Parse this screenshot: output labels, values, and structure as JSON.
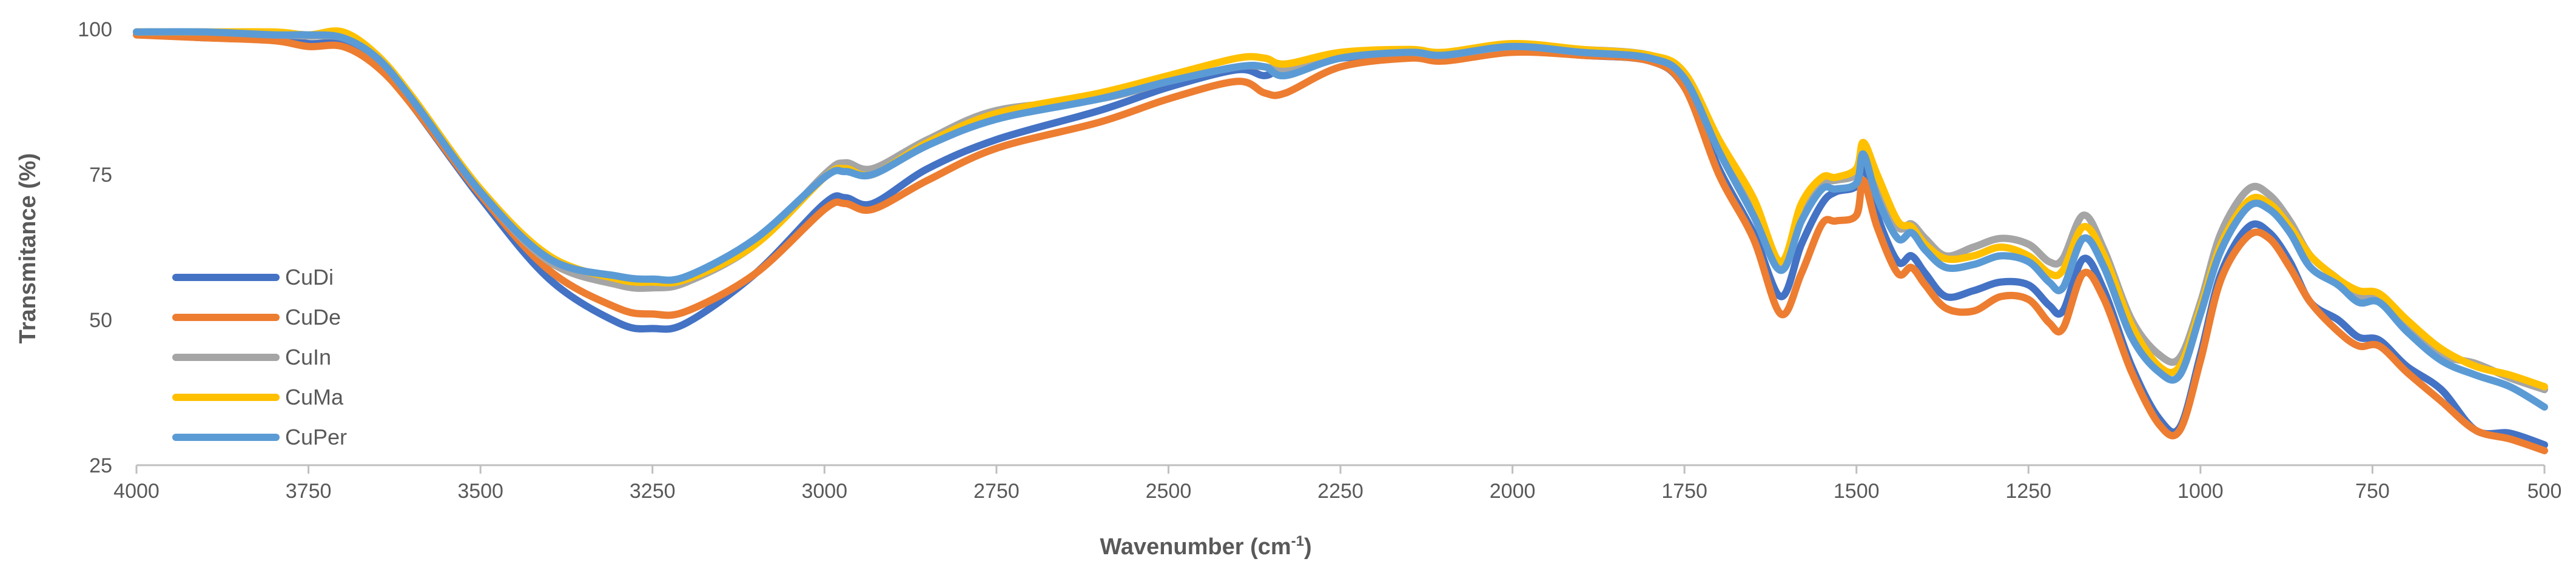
{
  "chart_data": {
    "type": "line",
    "title": "",
    "xlabel": "Wavenumber (cm",
    "xlabel_sup": "-1",
    "xlabel_close": ")",
    "ylabel": "Transmitance (%)",
    "xlim": [
      4000,
      500
    ],
    "ylim": [
      25,
      100
    ],
    "x_reversed": true,
    "grid": false,
    "legend_position": "left",
    "x_ticks": [
      4000,
      3750,
      3500,
      3250,
      3000,
      2750,
      2500,
      2250,
      2000,
      1750,
      1500,
      1250,
      1000,
      750,
      500
    ],
    "y_ticks": [
      25,
      50,
      75,
      100
    ],
    "x_tick_labels": [
      "4000",
      "3750",
      "3500",
      "3250",
      "3000",
      "2750",
      "2500",
      "2250",
      "2000",
      "1750",
      "1500",
      "1250",
      "1000",
      "750",
      "500"
    ],
    "y_tick_labels": [
      "25",
      "50",
      "75",
      "100"
    ],
    "x": [
      4000,
      3900,
      3800,
      3750,
      3700,
      3650,
      3600,
      3500,
      3400,
      3300,
      3250,
      3200,
      3100,
      3000,
      2970,
      2930,
      2850,
      2750,
      2600,
      2500,
      2400,
      2360,
      2330,
      2250,
      2150,
      2100,
      2000,
      1900,
      1800,
      1750,
      1700,
      1650,
      1610,
      1580,
      1550,
      1530,
      1500,
      1490,
      1470,
      1440,
      1420,
      1400,
      1370,
      1330,
      1290,
      1250,
      1220,
      1200,
      1170,
      1140,
      1100,
      1060,
      1030,
      1000,
      970,
      930,
      900,
      870,
      840,
      800,
      770,
      740,
      700,
      650,
      600,
      550,
      500
    ],
    "series": [
      {
        "name": "CuDi",
        "color": "#4472C4",
        "values": [
          99.5,
          98.5,
          98.8,
          97.5,
          97.5,
          94,
          87,
          71,
          57,
          49.5,
          48.5,
          49.5,
          58,
          70,
          71,
          70,
          76,
          81,
          86,
          90,
          93,
          92,
          93.5,
          95,
          95.5,
          95,
          96.5,
          95.5,
          94.5,
          90,
          76,
          65,
          54,
          63,
          70,
          72,
          73,
          77,
          68,
          60,
          61,
          58,
          54,
          55,
          56.5,
          56,
          52.5,
          51.5,
          60.5,
          55,
          42,
          33,
          31.5,
          44,
          58,
          66,
          65,
          60,
          53,
          50,
          47,
          46.5,
          42,
          38,
          31,
          30.5,
          28.5
        ]
      },
      {
        "name": "CuDe",
        "color": "#ED7D31",
        "values": [
          99,
          98.5,
          98,
          97,
          97,
          93.5,
          87,
          71.5,
          58.5,
          52,
          51,
          51.5,
          58,
          69,
          70,
          69,
          74,
          79.5,
          84,
          88,
          91,
          89,
          89,
          93.5,
          95,
          94.5,
          96,
          95.5,
          94.5,
          90,
          75,
          64,
          51,
          58,
          66.5,
          67,
          68,
          74,
          66,
          58,
          59,
          56,
          52,
          51.5,
          54,
          53.5,
          49.5,
          48.5,
          58,
          53.5,
          41,
          32,
          31,
          43,
          57,
          64.5,
          64,
          59,
          53,
          48,
          45.5,
          45.5,
          41,
          36,
          31,
          29.5,
          27.5
        ]
      },
      {
        "name": "CuIn",
        "color": "#A5A5A5",
        "values": [
          99.5,
          99.5,
          99,
          98.8,
          98.5,
          95,
          88,
          72,
          60,
          56,
          55.5,
          56.5,
          63,
          75,
          77,
          76,
          81,
          86,
          88,
          91,
          93.5,
          93.5,
          93,
          95.5,
          96,
          95.5,
          97,
          96.5,
          95.5,
          92,
          80,
          70,
          59,
          68,
          73.5,
          74,
          75,
          79,
          74,
          66,
          66.5,
          64,
          61,
          62.5,
          64,
          63,
          60,
          60.5,
          68,
          62,
          50,
          44,
          43.5,
          53,
          65,
          72.5,
          71.5,
          67,
          61,
          57,
          54,
          53.5,
          49,
          44,
          42.5,
          40,
          38
        ]
      },
      {
        "name": "CuMa",
        "color": "#FFC000",
        "values": [
          99.5,
          99.5,
          99.5,
          99,
          99.5,
          95.5,
          88.5,
          72.5,
          61,
          57,
          56.5,
          57,
          63,
          74.5,
          76,
          75,
          80.5,
          85.5,
          89,
          92,
          95,
          95,
          94,
          96,
          96.5,
          96,
          97.5,
          96.5,
          95.5,
          92.5,
          81,
          71,
          60,
          70,
          74.5,
          74.5,
          76,
          80.5,
          75,
          67,
          66,
          63,
          60.5,
          61,
          62.5,
          61,
          58,
          58.5,
          66,
          61,
          49,
          42,
          42,
          52,
          63,
          70.5,
          70,
          66,
          61,
          57,
          55,
          54.5,
          50,
          45,
          42,
          40.5,
          38.5
        ]
      },
      {
        "name": "CuPer",
        "color": "#5B9BD5",
        "values": [
          99.5,
          99.5,
          99,
          99,
          98.5,
          95,
          88,
          72,
          60.5,
          57.5,
          57,
          57.5,
          64,
          74.5,
          75.5,
          75,
          80,
          84.5,
          88,
          91,
          93.5,
          93.5,
          92,
          95,
          96,
          95.5,
          97,
          96,
          95,
          91.5,
          79,
          68,
          58.5,
          67,
          72.5,
          72.5,
          73.5,
          78.5,
          71,
          64,
          65,
          62,
          59,
          59.5,
          61,
          60,
          56.5,
          55.5,
          64,
          59,
          47,
          41,
          40.5,
          51,
          62,
          69.5,
          69,
          65,
          59,
          56,
          53,
          53,
          48,
          43,
          40.5,
          38.5,
          35
        ]
      }
    ]
  }
}
